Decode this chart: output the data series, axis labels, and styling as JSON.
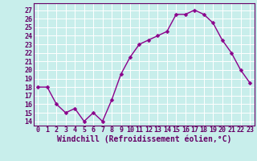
{
  "x": [
    0,
    1,
    2,
    3,
    4,
    5,
    6,
    7,
    8,
    9,
    10,
    11,
    12,
    13,
    14,
    15,
    16,
    17,
    18,
    19,
    20,
    21,
    22,
    23
  ],
  "y": [
    18,
    18,
    16,
    15,
    15.5,
    14,
    15,
    14,
    16.5,
    19.5,
    21.5,
    23,
    23.5,
    24,
    24.5,
    26.5,
    26.5,
    27,
    26.5,
    25.5,
    23.5,
    22,
    20,
    18.5
  ],
  "line_color": "#8B008B",
  "marker": "D",
  "marker_size": 2.5,
  "bg_color": "#c8eeeb",
  "grid_color": "#ffffff",
  "xlabel": "Windchill (Refroidissement éolien,°C)",
  "xlabel_color": "#660066",
  "yticks": [
    14,
    15,
    16,
    17,
    18,
    19,
    20,
    21,
    22,
    23,
    24,
    25,
    26,
    27
  ],
  "xticks": [
    0,
    1,
    2,
    3,
    4,
    5,
    6,
    7,
    8,
    9,
    10,
    11,
    12,
    13,
    14,
    15,
    16,
    17,
    18,
    19,
    20,
    21,
    22,
    23
  ],
  "ylim": [
    13.5,
    27.8
  ],
  "xlim": [
    -0.5,
    23.5
  ],
  "tick_color": "#660066",
  "tick_fontsize": 6.0,
  "xlabel_fontsize": 7.0,
  "linewidth": 1.0
}
